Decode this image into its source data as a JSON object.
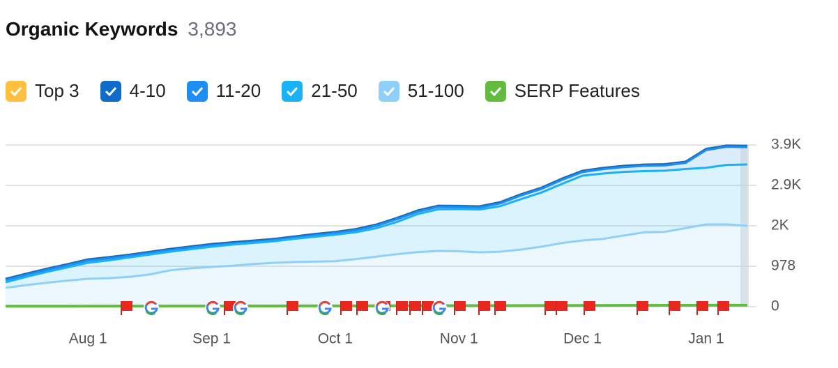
{
  "chart_data": {
    "type": "area",
    "title": "Organic Keywords",
    "subtitle": "3,893",
    "categories": [
      null,
      null,
      null,
      null,
      "Aug 1",
      null,
      null,
      null,
      null,
      null,
      "Sep 1",
      null,
      null,
      null,
      null,
      null,
      "Oct 1",
      null,
      null,
      null,
      null,
      null,
      "Nov 1",
      null,
      null,
      null,
      null,
      null,
      "Dec 1",
      null,
      null,
      null,
      null,
      null,
      "Jan 1",
      null,
      null
    ],
    "series": [
      {
        "name": "Top 3",
        "color": "#ffbf3f",
        "type": "area",
        "values": [
          3,
          3,
          3,
          3,
          3,
          3,
          3,
          3,
          3,
          3,
          3,
          3,
          3,
          3,
          3,
          3,
          3,
          3,
          3,
          3,
          3,
          3,
          3,
          3,
          3,
          3,
          3,
          3,
          3,
          3,
          3,
          3,
          3,
          3,
          3,
          3,
          3
        ]
      },
      {
        "name": "4-10",
        "color": "#0f6cc8",
        "type": "area",
        "values": [
          30,
          30,
          30,
          30,
          30,
          30,
          30,
          30,
          30,
          30,
          30,
          30,
          30,
          30,
          30,
          30,
          30,
          30,
          30,
          30,
          30,
          30,
          30,
          30,
          30,
          30,
          30,
          30,
          30,
          30,
          30,
          30,
          30,
          30,
          30,
          30,
          30
        ]
      },
      {
        "name": "11-20",
        "color": "#1e8ff0",
        "type": "area",
        "values": [
          52,
          47,
          47,
          47,
          52,
          47,
          37,
          37,
          37,
          37,
          35,
          27,
          27,
          27,
          27,
          37,
          37,
          47,
          57,
          67,
          57,
          57,
          47,
          47,
          67,
          87,
          87,
          97,
          87,
          107,
          117,
          127,
          127,
          147,
          427,
          437,
          420
        ]
      },
      {
        "name": "21-50",
        "color": "#1ab2f5",
        "type": "area",
        "values": [
          135,
          200,
          260,
          320,
          387,
          430,
          470,
          480,
          450,
          460,
          489,
          510,
          510,
          520,
          560,
          600,
          640,
          650,
          690,
          780,
          920,
          1006,
          1020,
          1035,
          1100,
          1220,
          1310,
          1430,
          1568,
          1580,
          1540,
          1480,
          1480,
          1430,
          1370,
          1440,
          1484
        ]
      },
      {
        "name": "51-100",
        "color": "#8fd0fa",
        "type": "area",
        "values": [
          455,
          520,
          580,
          630,
          675,
          690,
          720,
          780,
          880,
          930,
          961,
          990,
          1030,
          1060,
          1080,
          1090,
          1100,
          1150,
          1210,
          1270,
          1320,
          1349,
          1340,
          1315,
          1330,
          1380,
          1450,
          1540,
          1602,
          1640,
          1720,
          1800,
          1810,
          1900,
          1990,
          1990,
          1956
        ]
      },
      {
        "name": "SERP Features",
        "color": "#63bb3f",
        "type": "line",
        "values": [
          10,
          10,
          10,
          10,
          12,
          12,
          12,
          12,
          14,
          14,
          15,
          15,
          16,
          16,
          18,
          18,
          20,
          20,
          22,
          22,
          24,
          24,
          25,
          25,
          26,
          26,
          28,
          28,
          30,
          30,
          32,
          32,
          34,
          34,
          36,
          36,
          36
        ]
      }
    ],
    "ylim": [
      0,
      3912
    ],
    "yticks": [
      0,
      978,
      {
        "value": 1956,
        "label": "2K"
      },
      {
        "value": 2934,
        "label": "2.9K"
      },
      {
        "value": 3912,
        "label": "3.9K"
      }
    ],
    "grid": true
  }
}
